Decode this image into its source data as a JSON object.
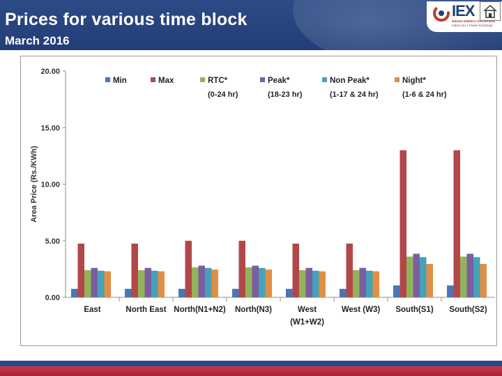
{
  "header": {
    "title": "Prices for various time block",
    "subtitle": "March 2016",
    "logo_text": "IEX",
    "logo_tag1": "INDIAN ENERGY EXCHANGE",
    "logo_tag2": "India's No.1 Power Exchange"
  },
  "colors": {
    "header_bg": "#223e78",
    "footer_red": "#a91f36",
    "min": "#4a76b4",
    "max": "#b2474a",
    "rtc": "#93b35a",
    "peak": "#7b5ea1",
    "nonpeak": "#45a2b8",
    "night": "#e08f45"
  },
  "chart_data": {
    "type": "bar",
    "ylabel": "Area Price (Rs./KWh)",
    "ylim": [
      0,
      20
    ],
    "yticks": [
      "0.00",
      "5.00",
      "10.00",
      "15.00",
      "20.00"
    ],
    "categories": [
      [
        "East"
      ],
      [
        "North East"
      ],
      [
        "North(N1+N2)"
      ],
      [
        "North(N3)"
      ],
      [
        "West",
        "(W1+W2)"
      ],
      [
        "West (W3)"
      ],
      [
        "South(S1)"
      ],
      [
        "South(S2)"
      ]
    ],
    "series": [
      {
        "name": "Min",
        "sub": "",
        "color": "#4a76b4",
        "values": [
          0.75,
          0.75,
          0.75,
          0.75,
          0.75,
          0.75,
          1.05,
          1.05
        ]
      },
      {
        "name": "Max",
        "sub": "",
        "color": "#b2474a",
        "values": [
          4.75,
          4.75,
          5.0,
          5.0,
          4.75,
          4.75,
          13.0,
          13.0
        ]
      },
      {
        "name": "RTC*",
        "sub": "(0-24 hr)",
        "color": "#93b35a",
        "values": [
          2.4,
          2.4,
          2.65,
          2.65,
          2.4,
          2.4,
          3.6,
          3.6
        ]
      },
      {
        "name": "Peak*",
        "sub": "(18-23 hr)",
        "color": "#7b5ea1",
        "values": [
          2.6,
          2.6,
          2.8,
          2.8,
          2.6,
          2.6,
          3.85,
          3.85
        ]
      },
      {
        "name": "Non Peak*",
        "sub": "(1-17 & 24 hr)",
        "color": "#45a2b8",
        "values": [
          2.35,
          2.35,
          2.6,
          2.6,
          2.35,
          2.35,
          3.55,
          3.55
        ]
      },
      {
        "name": "Night*",
        "sub": "(1-6 & 24 hr)",
        "color": "#e08f45",
        "values": [
          2.3,
          2.3,
          2.45,
          2.45,
          2.3,
          2.3,
          2.95,
          2.95
        ]
      }
    ],
    "legend_position": "top",
    "grid": false
  }
}
